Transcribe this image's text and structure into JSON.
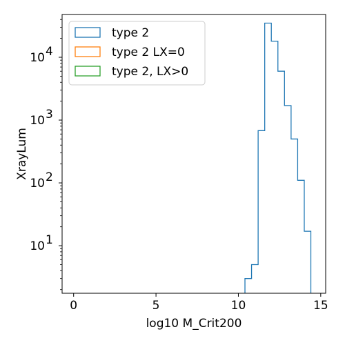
{
  "chart_data": {
    "type": "histogram-step",
    "xlabel": "log10 M_Crit200",
    "ylabel": "XrayLum",
    "xlim": [
      -0.7,
      15.3
    ],
    "ylim": [
      1.75,
      48000
    ],
    "yscale": "log",
    "x_ticks": [
      {
        "value": 0,
        "label": "0"
      },
      {
        "value": 5,
        "label": "5"
      },
      {
        "value": 10,
        "label": "10"
      },
      {
        "value": 15,
        "label": "15"
      }
    ],
    "y_ticks": [
      {
        "value": 10,
        "base": "10",
        "exp": "1"
      },
      {
        "value": 100,
        "base": "10",
        "exp": "2"
      },
      {
        "value": 1000,
        "base": "10",
        "exp": "3"
      },
      {
        "value": 10000,
        "base": "10",
        "exp": "4"
      }
    ],
    "grid": false,
    "legend_position": "top-left",
    "series": [
      {
        "name": "type 2",
        "color": "#1f77b4",
        "bin_edges": [
          10.4,
          10.8,
          11.2,
          11.6,
          12.0,
          12.4,
          12.8,
          13.2,
          13.6,
          14.0,
          14.4
        ],
        "counts": [
          3,
          5,
          680,
          35000,
          18000,
          6000,
          1700,
          500,
          110,
          17
        ]
      },
      {
        "name": "type 2 LX=0",
        "color": "#ff7f0e",
        "bin_edges": [],
        "counts": []
      },
      {
        "name": "type 2, LX>0",
        "color": "#2ca02c",
        "bin_edges": [],
        "counts": []
      }
    ]
  }
}
